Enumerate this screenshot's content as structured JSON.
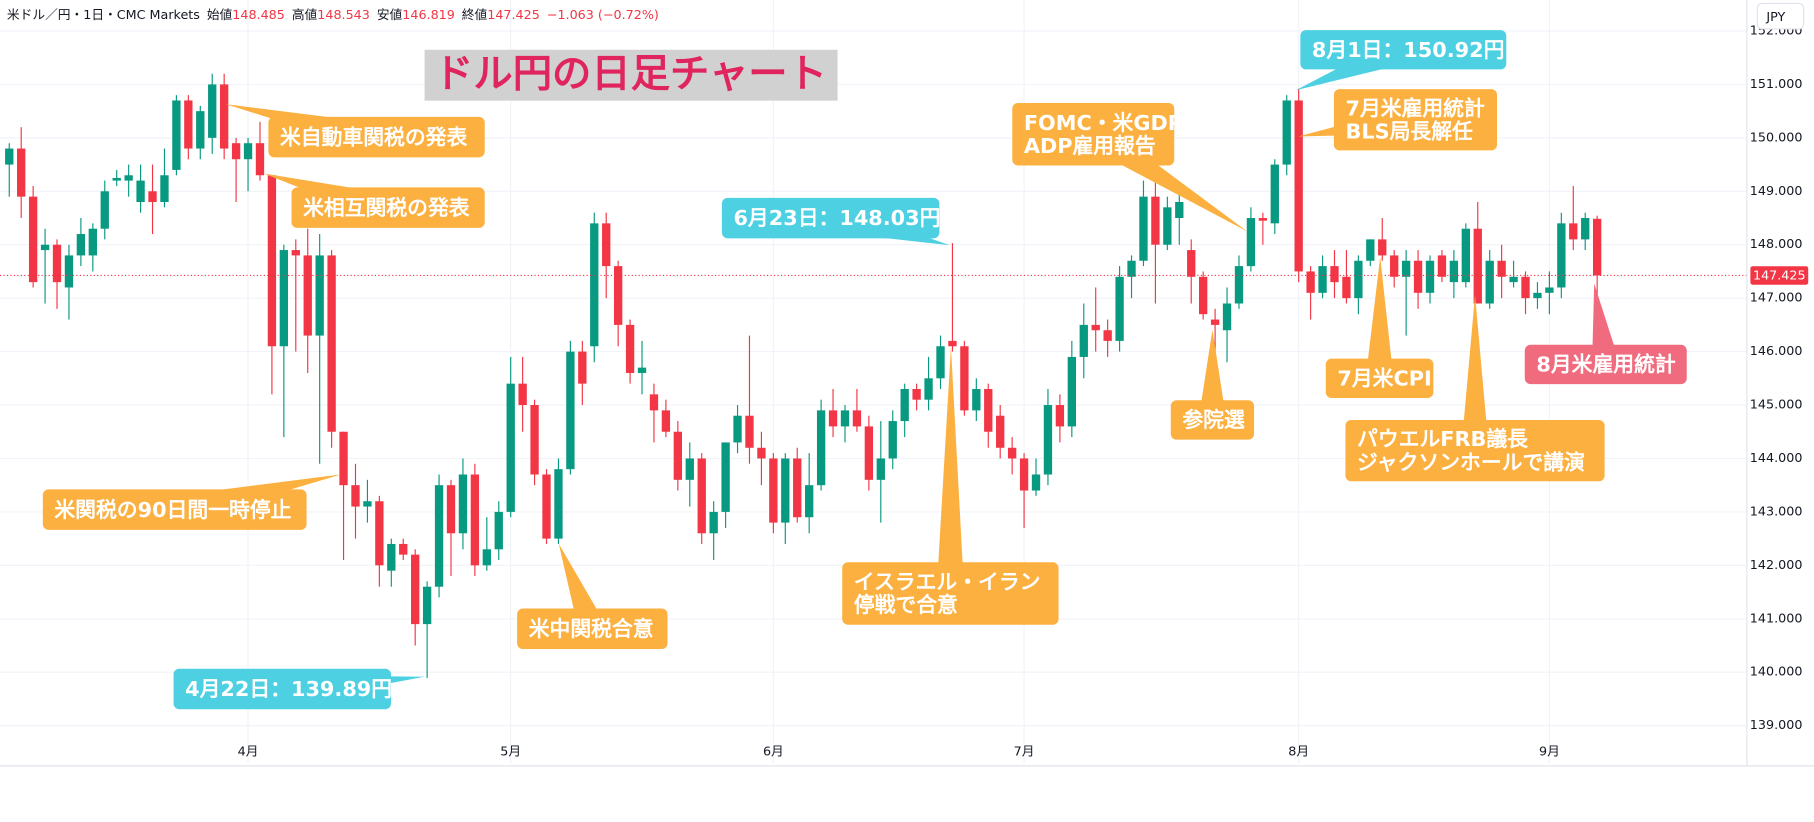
{
  "chart_data": {
    "type": "candlestick",
    "title": "ドル円の日足チャート",
    "title_color": "#e0245e",
    "header": {
      "symbol": "米ドル／円・1日・CMC Markets",
      "labels": [
        "始値",
        "高値",
        "安値",
        "終値"
      ],
      "change": "−1.063 (−0.72%)"
    },
    "currency": "JPY",
    "up_color": "#089981",
    "down_color": "#f23645",
    "grid": true,
    "ylim": [
      138.29,
      152.58
    ],
    "yticks": [
      {
        "value": 139,
        "label": "139.000"
      },
      {
        "value": 140,
        "label": "140.000"
      },
      {
        "value": 141,
        "label": "141.000"
      },
      {
        "value": 142,
        "label": "142.000"
      },
      {
        "value": 143,
        "label": "143.000"
      },
      {
        "value": 144,
        "label": "144.000"
      },
      {
        "value": 145,
        "label": "145.000"
      },
      {
        "value": 146,
        "label": "146.000"
      },
      {
        "value": 147,
        "label": "147.000"
      },
      {
        "value": 148,
        "label": "148.000"
      },
      {
        "value": 149,
        "label": "149.000"
      },
      {
        "value": 150,
        "label": "150.000"
      },
      {
        "value": 151,
        "label": "151.000"
      },
      {
        "value": 152,
        "label": "152.000"
      }
    ],
    "categories": [
      null,
      null,
      null,
      null,
      null,
      null,
      null,
      null,
      null,
      null,
      null,
      null,
      null,
      null,
      null,
      null,
      null,
      null,
      null,
      null,
      "4月",
      null,
      null,
      null,
      null,
      null,
      null,
      null,
      null,
      null,
      null,
      null,
      null,
      null,
      null,
      null,
      null,
      null,
      null,
      null,
      null,
      null,
      "5月",
      null,
      null,
      null,
      null,
      null,
      null,
      null,
      null,
      null,
      null,
      null,
      null,
      null,
      null,
      null,
      null,
      null,
      null,
      null,
      null,
      null,
      "6月",
      null,
      null,
      null,
      null,
      null,
      null,
      null,
      null,
      null,
      null,
      null,
      null,
      null,
      null,
      null,
      null,
      null,
      null,
      null,
      null,
      "7月",
      null,
      null,
      null,
      null,
      null,
      null,
      null,
      null,
      null,
      null,
      null,
      null,
      null,
      null,
      null,
      null,
      null,
      null,
      null,
      null,
      null,
      null,
      "8月",
      null,
      null,
      null,
      null,
      null,
      null,
      null,
      null,
      null,
      null,
      null,
      null,
      null,
      null,
      null,
      null,
      null,
      null,
      null,
      null,
      "9月",
      null,
      null,
      null,
      null
    ],
    "open": [
      149.5,
      149.8,
      148.9,
      147.9,
      148.0,
      147.2,
      147.8,
      147.8,
      148.3,
      149.2,
      149.2,
      148.8,
      149.0,
      148.8,
      149.4,
      150.7,
      149.8,
      150.0,
      151.0,
      149.9,
      149.6,
      149.9,
      149.3,
      146.1,
      147.9,
      147.8,
      146.3,
      147.8,
      144.5,
      143.5,
      143.1,
      143.2,
      141.9,
      142.4,
      142.2,
      140.9,
      141.6,
      143.5,
      142.6,
      143.7,
      142.0,
      142.3,
      143.0,
      145.4,
      145.0,
      143.7,
      142.5,
      143.8,
      146.0,
      146.1,
      148.4,
      147.6,
      146.5,
      145.6,
      145.2,
      144.9,
      144.5,
      143.6,
      144.0,
      142.6,
      143.0,
      144.3,
      144.8,
      144.2,
      144.0,
      142.8,
      144.0,
      142.9,
      143.5,
      144.9,
      144.6,
      144.9,
      144.6,
      143.6,
      144.0,
      144.7,
      145.3,
      145.1,
      145.5,
      146.2,
      146.1,
      144.9,
      145.3,
      144.8,
      144.2,
      144.0,
      143.4,
      143.7,
      145.0,
      144.6,
      145.9,
      146.5,
      146.4,
      146.2,
      147.4,
      147.7,
      148.9,
      148.0,
      148.5,
      147.9,
      147.4,
      146.6,
      146.4,
      146.9,
      147.6,
      148.5,
      148.4,
      149.5,
      150.7,
      147.5,
      147.1,
      147.6,
      147.4,
      147.0,
      147.7,
      148.1,
      147.8,
      147.4,
      147.7,
      147.1,
      147.8,
      147.3,
      147.3,
      148.3,
      146.9,
      147.7,
      147.3,
      147.4,
      147.0,
      147.1,
      147.2,
      148.4,
      148.1,
      148.485
    ],
    "high": [
      149.9,
      150.2,
      149.1,
      148.3,
      148.1,
      148.0,
      148.5,
      148.4,
      149.2,
      149.4,
      149.5,
      149.5,
      149.5,
      149.8,
      150.8,
      150.8,
      150.6,
      151.2,
      151.2,
      150.0,
      150.0,
      150.3,
      149.3,
      148.0,
      148.1,
      148.3,
      148.2,
      147.9,
      144.5,
      143.9,
      143.6,
      143.3,
      142.5,
      142.5,
      142.3,
      141.7,
      143.7,
      143.6,
      144.0,
      143.9,
      142.9,
      143.2,
      145.9,
      145.9,
      145.1,
      143.8,
      144.0,
      146.2,
      146.2,
      148.6,
      148.6,
      147.7,
      146.6,
      146.2,
      145.4,
      145.1,
      144.7,
      144.3,
      144.1,
      143.2,
      144.3,
      145.0,
      146.3,
      144.5,
      144.1,
      144.1,
      144.2,
      144.1,
      145.1,
      145.3,
      145.0,
      145.3,
      144.8,
      144.7,
      144.9,
      145.4,
      145.4,
      145.9,
      146.3,
      148.03,
      146.2,
      145.5,
      145.4,
      145.0,
      144.4,
      144.1,
      144.0,
      145.3,
      145.2,
      146.2,
      146.9,
      147.2,
      146.6,
      147.6,
      147.8,
      149.2,
      149.2,
      148.9,
      149.0,
      148.1,
      147.5,
      146.8,
      147.2,
      147.8,
      148.7,
      148.6,
      149.6,
      150.8,
      150.92,
      147.6,
      147.8,
      147.9,
      147.9,
      147.8,
      148.1,
      148.5,
      147.9,
      147.9,
      147.9,
      147.8,
      147.9,
      147.9,
      148.4,
      148.8,
      147.9,
      148.0,
      147.7,
      147.5,
      147.3,
      147.5,
      148.6,
      149.1,
      148.6,
      148.543
    ],
    "low": [
      148.9,
      148.5,
      147.2,
      146.9,
      146.8,
      146.6,
      147.6,
      147.5,
      148.1,
      149.1,
      148.9,
      148.6,
      148.2,
      148.7,
      149.3,
      149.6,
      149.6,
      149.7,
      149.6,
      148.8,
      149.0,
      149.2,
      145.2,
      144.4,
      146.0,
      145.6,
      143.9,
      144.2,
      142.1,
      142.5,
      142.8,
      141.6,
      141.6,
      142.1,
      140.5,
      139.89,
      141.4,
      141.8,
      142.3,
      141.8,
      141.9,
      142.1,
      142.9,
      144.5,
      143.5,
      142.4,
      142.4,
      143.7,
      145.0,
      145.8,
      147.0,
      146.1,
      145.4,
      145.2,
      144.3,
      144.4,
      143.4,
      143.1,
      142.4,
      142.1,
      142.7,
      144.1,
      143.9,
      143.5,
      142.6,
      142.4,
      142.8,
      142.6,
      143.4,
      144.4,
      144.3,
      144.5,
      143.4,
      142.8,
      143.8,
      144.4,
      144.9,
      144.9,
      145.3,
      146.0,
      144.8,
      144.7,
      144.2,
      144.0,
      143.7,
      142.7,
      143.3,
      143.5,
      144.3,
      144.4,
      145.5,
      146.0,
      145.9,
      146.0,
      147.0,
      147.6,
      146.9,
      147.9,
      148.0,
      146.9,
      146.6,
      146.0,
      145.8,
      146.8,
      147.5,
      148.0,
      148.2,
      149.3,
      147.3,
      146.6,
      147.0,
      147.0,
      146.9,
      146.7,
      147.6,
      147.7,
      147.2,
      146.3,
      146.8,
      146.9,
      147.3,
      147.0,
      147.2,
      146.9,
      146.8,
      147.0,
      147.2,
      146.7,
      146.8,
      146.7,
      147.0,
      147.9,
      147.9,
      146.819
    ],
    "close": [
      149.8,
      148.9,
      147.3,
      148.0,
      147.3,
      147.8,
      148.2,
      148.3,
      149.0,
      149.25,
      149.3,
      149.2,
      148.8,
      149.3,
      150.7,
      149.8,
      150.5,
      151.0,
      149.8,
      149.6,
      149.9,
      149.3,
      146.1,
      147.9,
      147.8,
      146.3,
      147.8,
      144.5,
      143.5,
      143.1,
      143.2,
      142.0,
      142.4,
      142.2,
      140.9,
      141.6,
      143.5,
      142.6,
      143.7,
      142.0,
      142.3,
      143.0,
      145.4,
      145.0,
      143.7,
      142.5,
      143.8,
      146.0,
      145.4,
      148.4,
      147.6,
      146.5,
      145.6,
      145.7,
      144.9,
      144.5,
      143.6,
      144.0,
      142.6,
      143.0,
      144.3,
      144.8,
      144.2,
      144.0,
      142.8,
      144.0,
      142.9,
      143.5,
      144.9,
      144.6,
      144.9,
      144.6,
      143.6,
      144.0,
      144.7,
      145.3,
      145.1,
      145.5,
      146.1,
      146.1,
      144.9,
      145.3,
      144.5,
      144.2,
      144.0,
      143.4,
      143.7,
      145.0,
      144.6,
      145.9,
      146.5,
      146.4,
      146.2,
      147.4,
      147.7,
      148.9,
      148.0,
      148.7,
      148.8,
      147.4,
      146.7,
      146.5,
      146.9,
      147.6,
      148.5,
      148.45,
      149.5,
      150.7,
      147.5,
      147.1,
      147.6,
      147.3,
      147.0,
      147.7,
      148.1,
      147.8,
      147.4,
      147.7,
      147.1,
      147.7,
      147.4,
      147.7,
      148.3,
      146.9,
      147.7,
      147.4,
      147.4,
      147.0,
      147.1,
      147.2,
      148.4,
      148.1,
      148.5,
      147.425
    ],
    "annotations": [
      {
        "text": [
          "米自動車関税の発表"
        ],
        "color": "#fbb040"
      },
      {
        "text": [
          "米相互関税の発表"
        ],
        "color": "#fbb040"
      },
      {
        "text": [
          "米関税の90日間一時停止"
        ],
        "color": "#fbb040"
      },
      {
        "text": [
          "4月22日：139.89円"
        ],
        "color": "#4dd0e1"
      },
      {
        "text": [
          "米中関税合意"
        ],
        "color": "#fbb040"
      },
      {
        "text": [
          "6月23日：148.03円"
        ],
        "color": "#4dd0e1"
      },
      {
        "text": [
          "イスラエル・イラン",
          "停戦で合意"
        ],
        "color": "#fbb040"
      },
      {
        "text": [
          "FOMC・米GDP",
          "ADP雇用報告"
        ],
        "color": "#fbb040"
      },
      {
        "text": [
          "8月1日：150.92円"
        ],
        "color": "#4dd0e1"
      },
      {
        "text": [
          "7月米雇用統計",
          "BLS局長解任"
        ],
        "color": "#fbb040"
      },
      {
        "text": [
          "参院選"
        ],
        "color": "#fbb040"
      },
      {
        "text": [
          "7月米CPI"
        ],
        "color": "#fbb040"
      },
      {
        "text": [
          "パウエルFRB議長",
          "ジャクソンホールで講演"
        ],
        "color": "#fbb040"
      },
      {
        "text": [
          "8月米雇用統計"
        ],
        "color": "#f06b7e"
      }
    ]
  }
}
